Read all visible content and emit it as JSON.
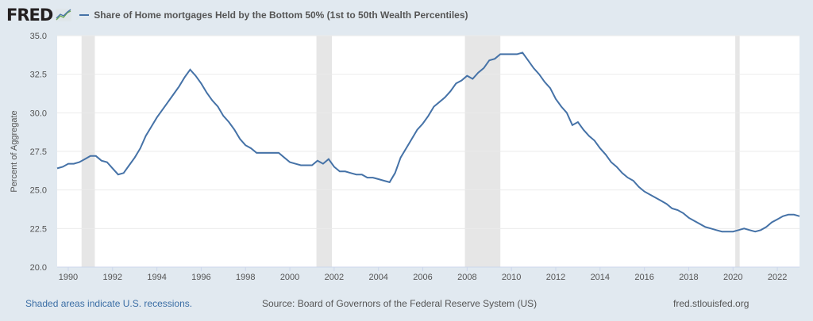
{
  "header": {
    "logo": "FRED",
    "series_title": "Share of Home mortgages Held by the Bottom 50% (1st to 50th Wealth Percentiles)"
  },
  "footer": {
    "recession_note": "Shaded areas indicate U.S. recessions.",
    "source": "Source: Board of Governors of the Federal Reserve System (US)",
    "site": "fred.stlouisfed.org"
  },
  "colors": {
    "line": "#4572a7",
    "recession": "#e6e6e6",
    "background": "#e1e9f0"
  },
  "chart_data": {
    "type": "line",
    "title": "Share of Home mortgages Held by the Bottom 50% (1st to 50th Wealth Percentiles)",
    "xlabel": "",
    "ylabel": "Percent of Aggregate",
    "xlim": [
      1989.5,
      2023.0
    ],
    "ylim": [
      20.0,
      35.0
    ],
    "yticks": [
      "20.0",
      "22.5",
      "25.0",
      "27.5",
      "30.0",
      "32.5",
      "35.0"
    ],
    "xticks": [
      "1990",
      "1992",
      "1994",
      "1996",
      "1998",
      "2000",
      "2002",
      "2004",
      "2006",
      "2008",
      "2010",
      "2012",
      "2014",
      "2016",
      "2018",
      "2020",
      "2022"
    ],
    "grid": true,
    "recessions": [
      [
        1990.6,
        1991.2
      ],
      [
        2001.2,
        2001.9
      ],
      [
        2007.9,
        2009.5
      ],
      [
        2020.1,
        2020.3
      ]
    ],
    "series": [
      {
        "name": "Share of Home mortgages Held by the Bottom 50%",
        "points": [
          [
            1989.5,
            26.4
          ],
          [
            1989.75,
            26.5
          ],
          [
            1990,
            26.7
          ],
          [
            1990.25,
            26.7
          ],
          [
            1990.5,
            26.8
          ],
          [
            1990.75,
            27.0
          ],
          [
            1991,
            27.2
          ],
          [
            1991.25,
            27.2
          ],
          [
            1991.5,
            26.9
          ],
          [
            1991.75,
            26.8
          ],
          [
            1992,
            26.4
          ],
          [
            1992.25,
            26.0
          ],
          [
            1992.5,
            26.1
          ],
          [
            1992.75,
            26.6
          ],
          [
            1993,
            27.1
          ],
          [
            1993.25,
            27.7
          ],
          [
            1993.5,
            28.5
          ],
          [
            1993.75,
            29.1
          ],
          [
            1994,
            29.7
          ],
          [
            1994.25,
            30.2
          ],
          [
            1994.5,
            30.7
          ],
          [
            1994.75,
            31.2
          ],
          [
            1995,
            31.7
          ],
          [
            1995.25,
            32.3
          ],
          [
            1995.5,
            32.8
          ],
          [
            1995.75,
            32.4
          ],
          [
            1996,
            31.9
          ],
          [
            1996.25,
            31.3
          ],
          [
            1996.5,
            30.8
          ],
          [
            1996.75,
            30.4
          ],
          [
            1997,
            29.8
          ],
          [
            1997.25,
            29.4
          ],
          [
            1997.5,
            28.9
          ],
          [
            1997.75,
            28.3
          ],
          [
            1998,
            27.9
          ],
          [
            1998.25,
            27.7
          ],
          [
            1998.5,
            27.4
          ],
          [
            1998.75,
            27.4
          ],
          [
            1999,
            27.4
          ],
          [
            1999.25,
            27.4
          ],
          [
            1999.5,
            27.4
          ],
          [
            1999.75,
            27.1
          ],
          [
            2000,
            26.8
          ],
          [
            2000.25,
            26.7
          ],
          [
            2000.5,
            26.6
          ],
          [
            2000.75,
            26.6
          ],
          [
            2001,
            26.6
          ],
          [
            2001.25,
            26.9
          ],
          [
            2001.5,
            26.7
          ],
          [
            2001.75,
            27.0
          ],
          [
            2002,
            26.5
          ],
          [
            2002.25,
            26.2
          ],
          [
            2002.5,
            26.2
          ],
          [
            2002.75,
            26.1
          ],
          [
            2003,
            26.0
          ],
          [
            2003.25,
            26.0
          ],
          [
            2003.5,
            25.8
          ],
          [
            2003.75,
            25.8
          ],
          [
            2004,
            25.7
          ],
          [
            2004.25,
            25.6
          ],
          [
            2004.5,
            25.5
          ],
          [
            2004.75,
            26.1
          ],
          [
            2005,
            27.1
          ],
          [
            2005.25,
            27.7
          ],
          [
            2005.5,
            28.3
          ],
          [
            2005.75,
            28.9
          ],
          [
            2006,
            29.3
          ],
          [
            2006.25,
            29.8
          ],
          [
            2006.5,
            30.4
          ],
          [
            2006.75,
            30.7
          ],
          [
            2007,
            31.0
          ],
          [
            2007.25,
            31.4
          ],
          [
            2007.5,
            31.9
          ],
          [
            2007.75,
            32.1
          ],
          [
            2008,
            32.4
          ],
          [
            2008.25,
            32.2
          ],
          [
            2008.5,
            32.6
          ],
          [
            2008.75,
            32.9
          ],
          [
            2009,
            33.4
          ],
          [
            2009.25,
            33.5
          ],
          [
            2009.5,
            33.8
          ],
          [
            2009.75,
            33.8
          ],
          [
            2010,
            33.8
          ],
          [
            2010.25,
            33.8
          ],
          [
            2010.5,
            33.9
          ],
          [
            2010.75,
            33.4
          ],
          [
            2011,
            32.9
          ],
          [
            2011.25,
            32.5
          ],
          [
            2011.5,
            32.0
          ],
          [
            2011.75,
            31.6
          ],
          [
            2012,
            30.9
          ],
          [
            2012.25,
            30.4
          ],
          [
            2012.5,
            30.0
          ],
          [
            2012.75,
            29.2
          ],
          [
            2013,
            29.4
          ],
          [
            2013.25,
            28.9
          ],
          [
            2013.5,
            28.5
          ],
          [
            2013.75,
            28.2
          ],
          [
            2014,
            27.7
          ],
          [
            2014.25,
            27.3
          ],
          [
            2014.5,
            26.8
          ],
          [
            2014.75,
            26.5
          ],
          [
            2015,
            26.1
          ],
          [
            2015.25,
            25.8
          ],
          [
            2015.5,
            25.6
          ],
          [
            2015.75,
            25.2
          ],
          [
            2016,
            24.9
          ],
          [
            2016.25,
            24.7
          ],
          [
            2016.5,
            24.5
          ],
          [
            2016.75,
            24.3
          ],
          [
            2017,
            24.1
          ],
          [
            2017.25,
            23.8
          ],
          [
            2017.5,
            23.7
          ],
          [
            2017.75,
            23.5
          ],
          [
            2018,
            23.2
          ],
          [
            2018.25,
            23.0
          ],
          [
            2018.5,
            22.8
          ],
          [
            2018.75,
            22.6
          ],
          [
            2019,
            22.5
          ],
          [
            2019.25,
            22.4
          ],
          [
            2019.5,
            22.3
          ],
          [
            2019.75,
            22.3
          ],
          [
            2020,
            22.3
          ],
          [
            2020.25,
            22.4
          ],
          [
            2020.5,
            22.5
          ],
          [
            2020.75,
            22.4
          ],
          [
            2021,
            22.3
          ],
          [
            2021.25,
            22.4
          ],
          [
            2021.5,
            22.6
          ],
          [
            2021.75,
            22.9
          ],
          [
            2022,
            23.1
          ],
          [
            2022.25,
            23.3
          ],
          [
            2022.5,
            23.4
          ],
          [
            2022.75,
            23.4
          ],
          [
            2023,
            23.3
          ]
        ]
      }
    ]
  }
}
